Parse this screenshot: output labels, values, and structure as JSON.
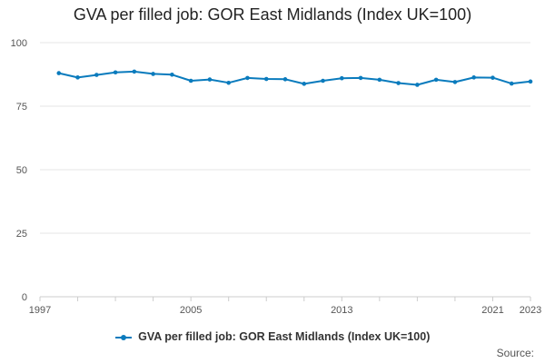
{
  "colors": {
    "series": "#0a7bbd",
    "grid": "#e6e6e6",
    "axis": "#cccccc"
  },
  "footer": {
    "source_label": "Source:"
  },
  "chart_data": {
    "type": "line",
    "title": "GVA per filled job: GOR East Midlands (Index UK=100)",
    "xlabel": "",
    "ylabel": "",
    "ylim": [
      0,
      100
    ],
    "xlim": [
      1997,
      2023
    ],
    "yticks": [
      0,
      25,
      50,
      75,
      100
    ],
    "xticks": [
      1997,
      2005,
      2013,
      2021,
      2023
    ],
    "grid": true,
    "legend_position": "bottom",
    "series": [
      {
        "name": "GVA per filled job: GOR East Midlands (Index UK=100)",
        "x": [
          1998,
          1999,
          2000,
          2001,
          2002,
          2003,
          2004,
          2005,
          2006,
          2007,
          2008,
          2009,
          2010,
          2011,
          2012,
          2013,
          2014,
          2015,
          2016,
          2017,
          2018,
          2019,
          2020,
          2021,
          2022,
          2023
        ],
        "values": [
          88.0,
          86.3,
          87.3,
          88.3,
          88.6,
          87.7,
          87.4,
          85.0,
          85.5,
          84.2,
          86.1,
          85.7,
          85.6,
          83.8,
          85.0,
          86.0,
          86.1,
          85.4,
          84.1,
          83.4,
          85.4,
          84.5,
          86.3,
          86.2,
          83.9,
          84.7
        ]
      }
    ]
  }
}
